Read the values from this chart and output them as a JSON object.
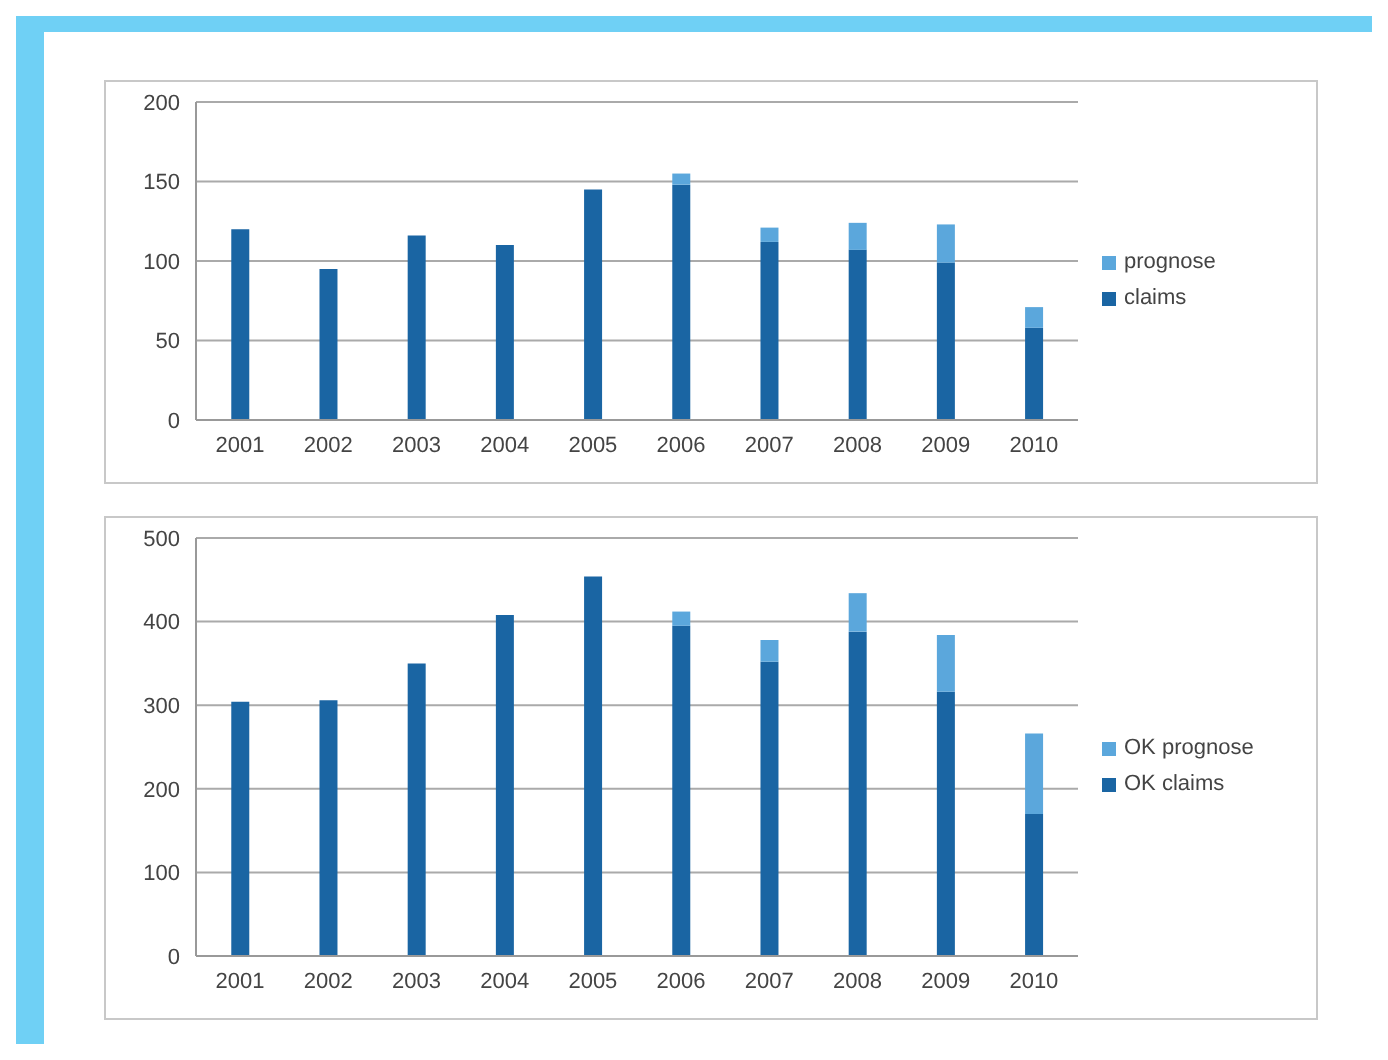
{
  "chart_data": [
    {
      "type": "bar",
      "stacked": true,
      "categories": [
        "2001",
        "2002",
        "2003",
        "2004",
        "2005",
        "2006",
        "2007",
        "2008",
        "2009",
        "2010"
      ],
      "series": [
        {
          "name": "claims",
          "color": "#1a65a3",
          "values": [
            120,
            95,
            116,
            110,
            145,
            148,
            112,
            107,
            99,
            58
          ]
        },
        {
          "name": "prognose",
          "color": "#5ba7dc",
          "values": [
            null,
            null,
            null,
            null,
            null,
            7,
            9,
            17,
            24,
            13
          ]
        }
      ],
      "ylim": [
        0,
        200
      ],
      "yticks": [
        0,
        50,
        100,
        150,
        200
      ],
      "grid": "y",
      "legend": "right"
    },
    {
      "type": "bar",
      "stacked": true,
      "categories": [
        "2001",
        "2002",
        "2003",
        "2004",
        "2005",
        "2006",
        "2007",
        "2008",
        "2009",
        "2010"
      ],
      "series": [
        {
          "name": "OK claims",
          "color": "#1a65a3",
          "values": [
            304,
            306,
            350,
            408,
            454,
            395,
            352,
            388,
            316,
            170
          ]
        },
        {
          "name": "OK prognose",
          "color": "#5ba7dc",
          "values": [
            null,
            null,
            null,
            null,
            null,
            17,
            26,
            46,
            68,
            96
          ]
        }
      ],
      "ylim": [
        0,
        500
      ],
      "yticks": [
        0,
        100,
        200,
        300,
        400,
        500
      ],
      "grid": "y",
      "legend": "right"
    }
  ]
}
